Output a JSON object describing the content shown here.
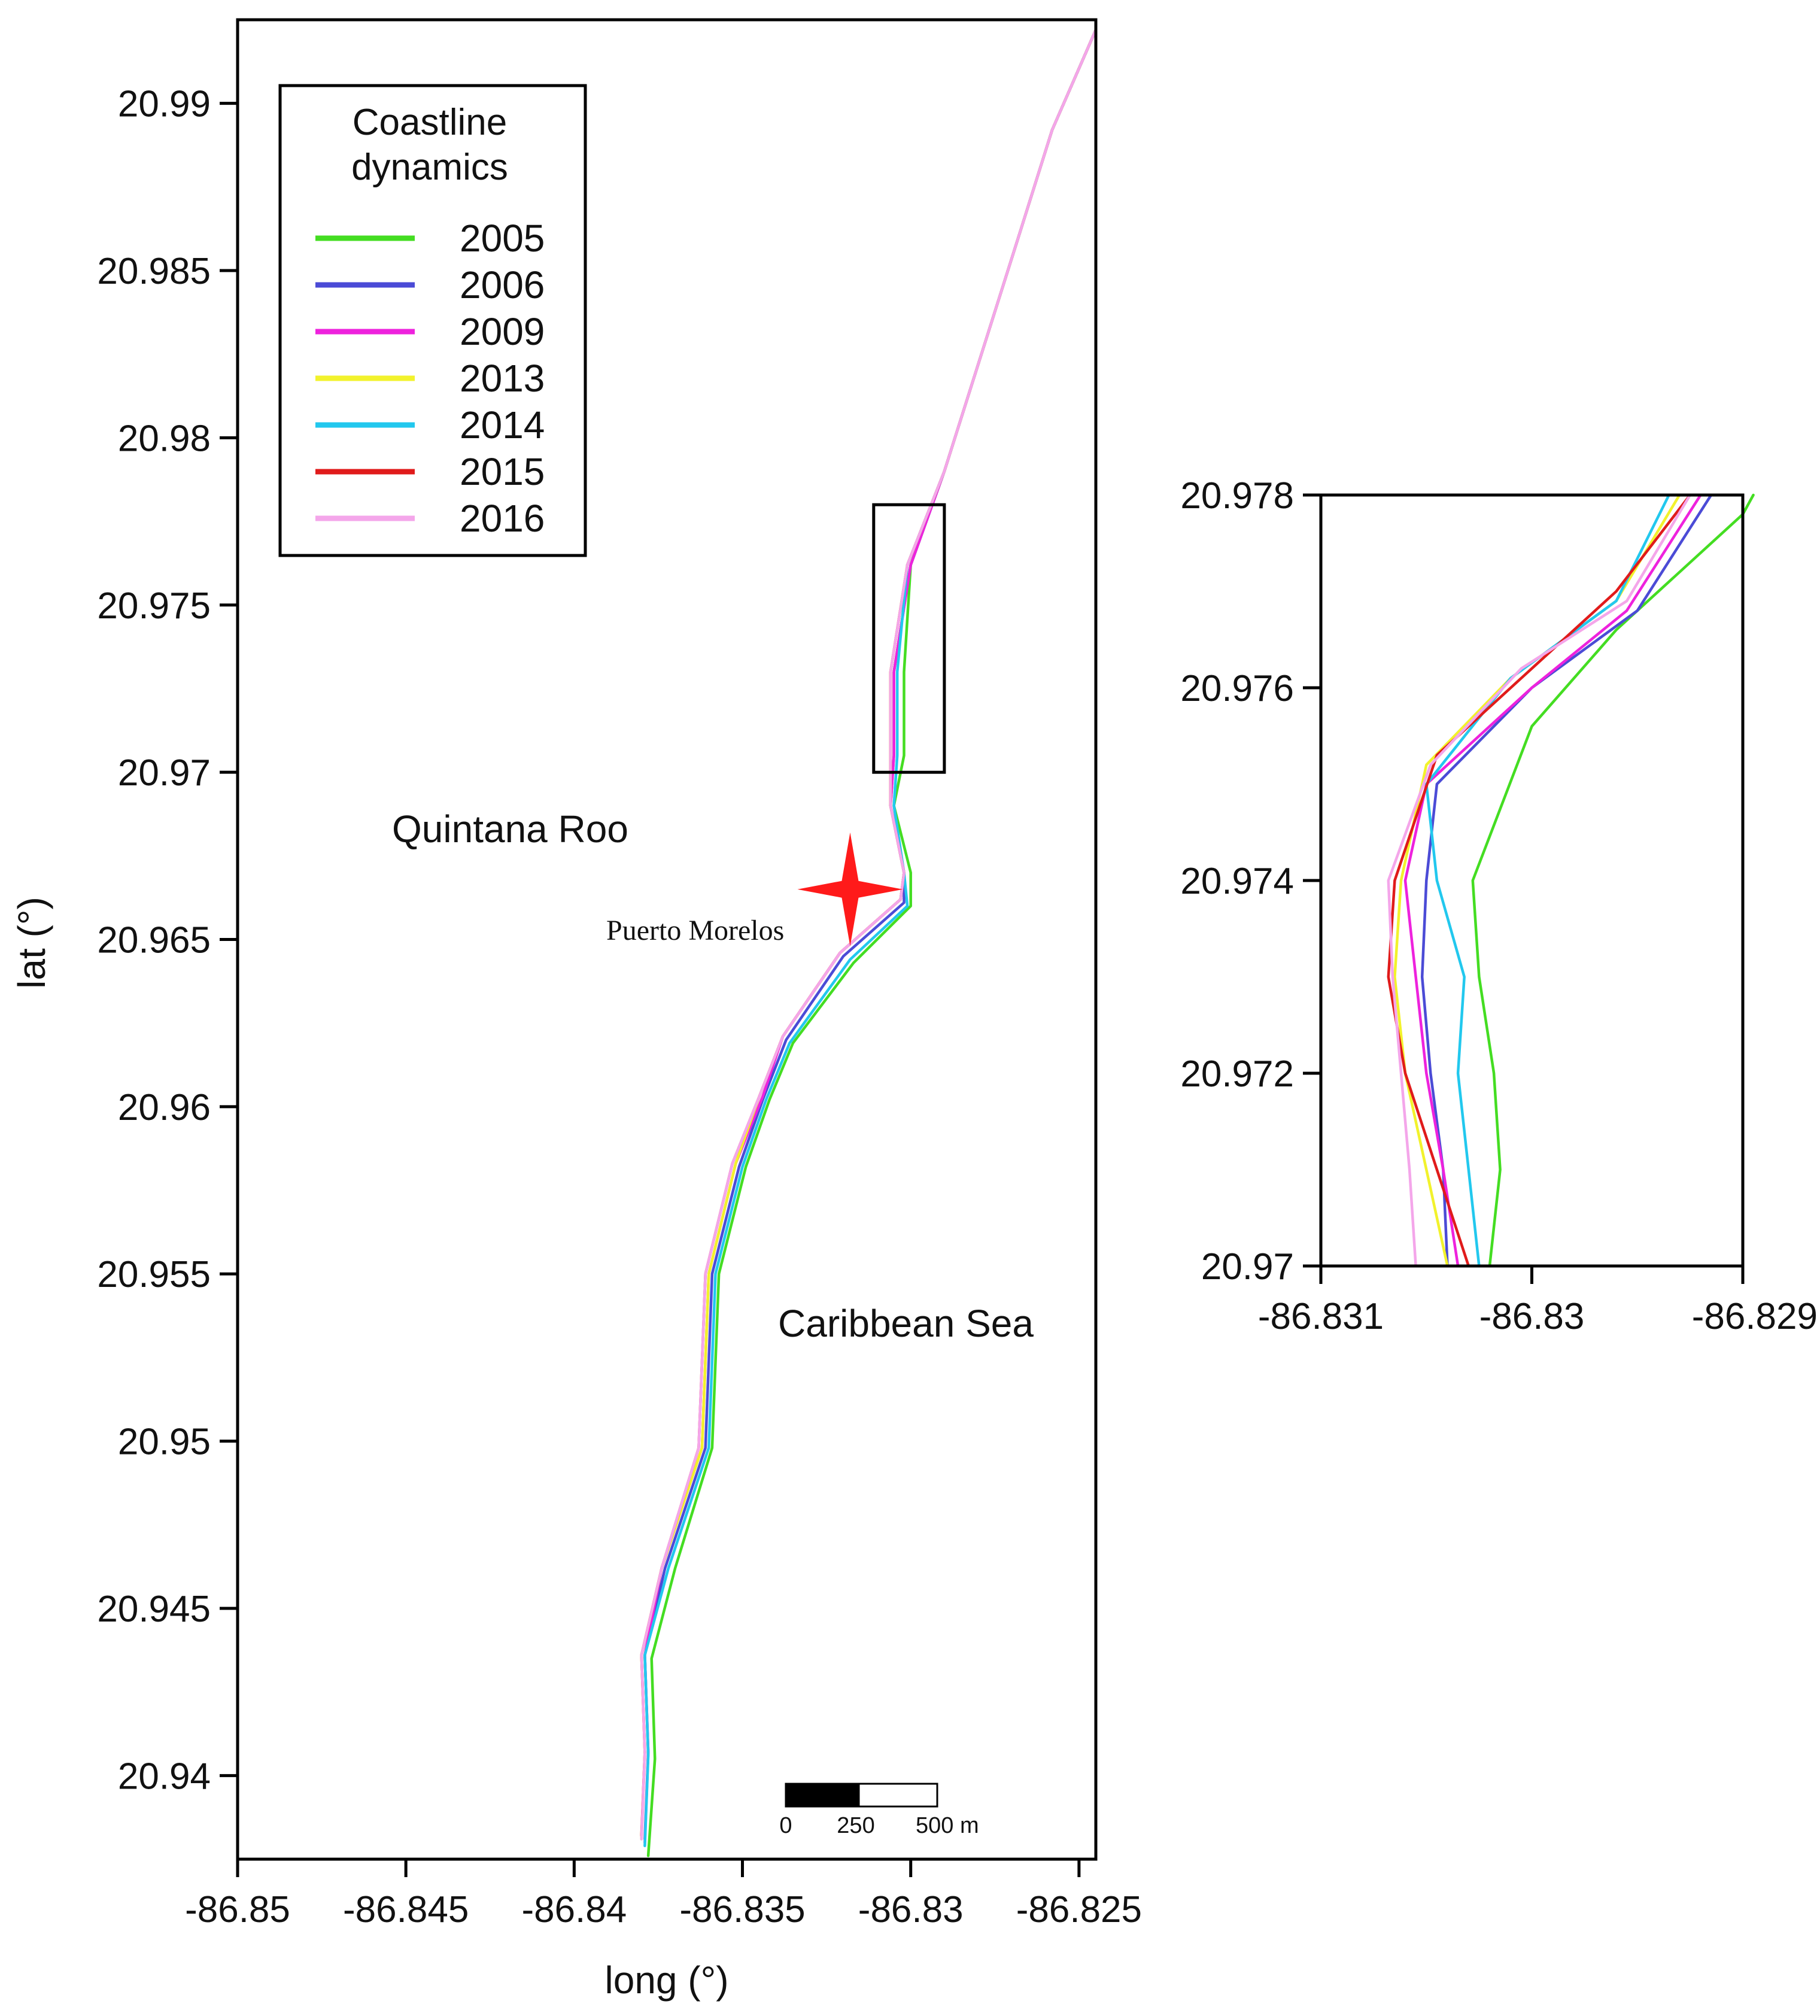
{
  "chart_data": [
    {
      "type": "line",
      "xlabel": "long (°)",
      "ylabel": "lat (°)",
      "xlim": [
        -86.85,
        -86.8245
      ],
      "ylim": [
        20.9375,
        20.9925
      ],
      "x_ticks": [
        -86.85,
        -86.845,
        -86.84,
        -86.835,
        -86.83,
        -86.825
      ],
      "y_ticks": [
        20.94,
        20.945,
        20.95,
        20.955,
        20.96,
        20.965,
        20.97,
        20.975,
        20.98,
        20.985,
        20.99
      ],
      "x_tick_labels": [
        "-86.85",
        "-86.845",
        "-86.84",
        "-86.835",
        "-86.83",
        "-86.825"
      ],
      "y_tick_labels": [
        "20.94",
        "20.945",
        "20.95",
        "20.955",
        "20.96",
        "20.965",
        "20.97",
        "20.975",
        "20.98",
        "20.985",
        "20.99"
      ],
      "legend": {
        "title_line1": "Coastline",
        "title_line2": "dynamics",
        "position": "top-left"
      },
      "annotations": {
        "land": "Quintana Roo",
        "sea": "Caribbean Sea",
        "town": "Puerto Morelos"
      },
      "town_marker": {
        "lon": -86.8318,
        "lat": 20.9665,
        "color": "#ff1a1a"
      },
      "inset_box": {
        "lon_range": [
          -86.8311,
          -86.829
        ],
        "lat_range": [
          20.97,
          20.978
        ]
      },
      "scale_bar": {
        "labels": [
          "0",
          "250",
          "500 m"
        ]
      },
      "series": [
        {
          "name": "2005",
          "color": "#44dd22",
          "points": [
            [
              -86.8378,
              20.9376
            ],
            [
              -86.8376,
              20.9405
            ],
            [
              -86.8377,
              20.9435
            ],
            [
              -86.837,
              20.9462
            ],
            [
              -86.8359,
              20.9498
            ],
            [
              -86.8357,
              20.955
            ],
            [
              -86.8349,
              20.9582
            ],
            [
              -86.8342,
              20.9602
            ],
            [
              -86.8335,
              20.9619
            ],
            [
              -86.8317,
              20.9643
            ],
            [
              -86.83,
              20.966
            ],
            [
              -86.83,
              20.967
            ],
            [
              -86.8305,
              20.969
            ],
            [
              -86.8302,
              20.9705
            ],
            [
              -86.8302,
              20.973
            ],
            [
              -86.83,
              20.9762
            ],
            [
              -86.829,
              20.979
            ],
            [
              -86.8268,
              20.986
            ],
            [
              -86.8258,
              20.9892
            ],
            [
              -86.8245,
              20.9922
            ]
          ]
        },
        {
          "name": "2006",
          "color": "#4b4bd6",
          "points": [
            [
              -86.8379,
              20.9381
            ],
            [
              -86.8378,
              20.9407
            ],
            [
              -86.8379,
              20.9436
            ],
            [
              -86.8373,
              20.9462
            ],
            [
              -86.8361,
              20.9498
            ],
            [
              -86.8359,
              20.955
            ],
            [
              -86.8351,
              20.9582
            ],
            [
              -86.8344,
              20.9602
            ],
            [
              -86.8337,
              20.962
            ],
            [
              -86.832,
              20.9645
            ],
            [
              -86.8302,
              20.9661
            ],
            [
              -86.8302,
              20.967
            ],
            [
              -86.8306,
              20.969
            ],
            [
              -86.8305,
              20.9705
            ],
            [
              -86.8305,
              20.973
            ],
            [
              -86.83,
              20.9762
            ],
            [
              -86.829,
              20.979
            ],
            [
              -86.8268,
              20.986
            ],
            [
              -86.8258,
              20.9892
            ],
            [
              -86.8245,
              20.9922
            ]
          ]
        },
        {
          "name": "2009",
          "color": "#ee22dd",
          "points": [
            [
              -86.8379,
              20.938
            ],
            [
              -86.8378,
              20.9407
            ],
            [
              -86.8379,
              20.9436
            ],
            [
              -86.8374,
              20.9462
            ],
            [
              -86.8362,
              20.9498
            ],
            [
              -86.836,
              20.955
            ],
            [
              -86.8352,
              20.9583
            ],
            [
              -86.8344,
              20.9603
            ],
            [
              -86.8338,
              20.9621
            ],
            [
              -86.8321,
              20.9646
            ],
            [
              -86.8303,
              20.9662
            ],
            [
              -86.8302,
              20.967
            ],
            [
              -86.8306,
              20.969
            ],
            [
              -86.8305,
              20.9705
            ],
            [
              -86.8305,
              20.973
            ],
            [
              -86.83,
              20.9762
            ],
            [
              -86.829,
              20.979
            ],
            [
              -86.8268,
              20.986
            ],
            [
              -86.8258,
              20.9892
            ],
            [
              -86.8245,
              20.9922
            ]
          ]
        },
        {
          "name": "2013",
          "color": "#f2f22c",
          "points": [
            [
              -86.838,
              20.9381
            ],
            [
              -86.8379,
              20.9407
            ],
            [
              -86.838,
              20.9436
            ],
            [
              -86.8374,
              20.9462
            ],
            [
              -86.8362,
              20.9498
            ],
            [
              -86.836,
              20.955
            ],
            [
              -86.8352,
              20.9583
            ],
            [
              -86.8345,
              20.9603
            ],
            [
              -86.8338,
              20.9621
            ],
            [
              -86.8321,
              20.9646
            ],
            [
              -86.8303,
              20.9662
            ],
            [
              -86.8302,
              20.967
            ],
            [
              -86.8306,
              20.969
            ],
            [
              -86.8306,
              20.9705
            ],
            [
              -86.8306,
              20.973
            ],
            [
              -86.8301,
              20.9762
            ],
            [
              -86.829,
              20.979
            ],
            [
              -86.8268,
              20.986
            ],
            [
              -86.8258,
              20.9892
            ],
            [
              -86.8245,
              20.9922
            ]
          ]
        },
        {
          "name": "2014",
          "color": "#22c8ee",
          "points": [
            [
              -86.8379,
              20.9379
            ],
            [
              -86.8378,
              20.9406
            ],
            [
              -86.8379,
              20.9436
            ],
            [
              -86.8372,
              20.9462
            ],
            [
              -86.836,
              20.9498
            ],
            [
              -86.8358,
              20.955
            ],
            [
              -86.835,
              20.9582
            ],
            [
              -86.8343,
              20.9602
            ],
            [
              -86.8336,
              20.9619
            ],
            [
              -86.8318,
              20.9644
            ],
            [
              -86.8301,
              20.966
            ],
            [
              -86.8302,
              20.967
            ],
            [
              -86.8305,
              20.969
            ],
            [
              -86.8304,
              20.9705
            ],
            [
              -86.8304,
              20.973
            ],
            [
              -86.8301,
              20.9762
            ],
            [
              -86.829,
              20.979
            ],
            [
              -86.8268,
              20.986
            ],
            [
              -86.8258,
              20.9892
            ],
            [
              -86.8245,
              20.9922
            ]
          ]
        },
        {
          "name": "2015",
          "color": "#e01b1b",
          "points": [
            [
              -86.838,
              20.9382
            ],
            [
              -86.8379,
              20.9407
            ],
            [
              -86.838,
              20.9436
            ],
            [
              -86.8374,
              20.9462
            ],
            [
              -86.8363,
              20.9498
            ],
            [
              -86.8361,
              20.955
            ],
            [
              -86.8353,
              20.9583
            ],
            [
              -86.8345,
              20.9603
            ],
            [
              -86.8338,
              20.9621
            ],
            [
              -86.8321,
              20.9646
            ],
            [
              -86.8303,
              20.9662
            ],
            [
              -86.8302,
              20.967
            ],
            [
              -86.8306,
              20.969
            ],
            [
              -86.8306,
              20.9705
            ],
            [
              -86.8306,
              20.973
            ],
            [
              -86.8301,
              20.9762
            ],
            [
              -86.829,
              20.979
            ],
            [
              -86.8268,
              20.986
            ],
            [
              -86.8258,
              20.9892
            ],
            [
              -86.8245,
              20.9922
            ]
          ]
        },
        {
          "name": "2016",
          "color": "#f4a6ea",
          "points": [
            [
              -86.838,
              20.9381
            ],
            [
              -86.8379,
              20.9407
            ],
            [
              -86.838,
              20.9436
            ],
            [
              -86.8374,
              20.9462
            ],
            [
              -86.8363,
              20.9498
            ],
            [
              -86.8361,
              20.955
            ],
            [
              -86.8353,
              20.9583
            ],
            [
              -86.8345,
              20.9603
            ],
            [
              -86.8338,
              20.9621
            ],
            [
              -86.8321,
              20.9646
            ],
            [
              -86.8303,
              20.9662
            ],
            [
              -86.8302,
              20.967
            ],
            [
              -86.8306,
              20.969
            ],
            [
              -86.8306,
              20.9705
            ],
            [
              -86.8306,
              20.973
            ],
            [
              -86.8301,
              20.9762
            ],
            [
              -86.829,
              20.979
            ],
            [
              -86.8268,
              20.986
            ],
            [
              -86.8258,
              20.9892
            ],
            [
              -86.8245,
              20.9922
            ]
          ]
        }
      ]
    },
    {
      "type": "line",
      "xlim": [
        -86.831,
        -86.829
      ],
      "ylim": [
        20.97,
        20.978
      ],
      "x_ticks": [
        -86.831,
        -86.83,
        -86.829
      ],
      "y_ticks": [
        20.97,
        20.972,
        20.974,
        20.976,
        20.978
      ],
      "x_tick_labels": [
        "-86.831",
        "-86.83",
        "-86.829"
      ],
      "y_tick_labels": [
        "20.97",
        "20.972",
        "20.974",
        "20.976",
        "20.978"
      ],
      "series": [
        {
          "name": "2005",
          "color": "#44dd22",
          "points": [
            [
              -86.8302,
              20.97
            ],
            [
              -86.83015,
              20.971
            ],
            [
              -86.83018,
              20.972
            ],
            [
              -86.83025,
              20.973
            ],
            [
              -86.83028,
              20.974
            ],
            [
              -86.83,
              20.9756
            ],
            [
              -86.8296,
              20.9766
            ],
            [
              -86.829,
              20.9778
            ],
            [
              -86.82895,
              20.978
            ]
          ]
        },
        {
          "name": "2006",
          "color": "#4b4bd6",
          "points": [
            [
              -86.8304,
              20.97
            ],
            [
              -86.83042,
              20.971
            ],
            [
              -86.83048,
              20.972
            ],
            [
              -86.83052,
              20.973
            ],
            [
              -86.8305,
              20.974
            ],
            [
              -86.83045,
              20.975
            ],
            [
              -86.83,
              20.976
            ],
            [
              -86.8295,
              20.9768
            ],
            [
              -86.82915,
              20.978
            ]
          ]
        },
        {
          "name": "2009",
          "color": "#ee22dd",
          "points": [
            [
              -86.83035,
              20.97
            ],
            [
              -86.83042,
              20.971
            ],
            [
              -86.8305,
              20.972
            ],
            [
              -86.83055,
              20.973
            ],
            [
              -86.8306,
              20.974
            ],
            [
              -86.8305,
              20.975
            ],
            [
              -86.83,
              20.976
            ],
            [
              -86.82955,
              20.9768
            ],
            [
              -86.8292,
              20.978
            ]
          ]
        },
        {
          "name": "2013",
          "color": "#f2f22c",
          "points": [
            [
              -86.8304,
              20.97
            ],
            [
              -86.8305,
              20.971
            ],
            [
              -86.8306,
              20.972
            ],
            [
              -86.83065,
              20.973
            ],
            [
              -86.83062,
              20.974
            ],
            [
              -86.8305,
              20.9752
            ],
            [
              -86.8301,
              20.9761
            ],
            [
              -86.8296,
              20.9769
            ],
            [
              -86.8293,
              20.978
            ]
          ]
        },
        {
          "name": "2014",
          "color": "#22c8ee",
          "points": [
            [
              -86.83025,
              20.97
            ],
            [
              -86.8303,
              20.971
            ],
            [
              -86.83035,
              20.972
            ],
            [
              -86.83032,
              20.973
            ],
            [
              -86.83045,
              20.974
            ],
            [
              -86.8305,
              20.975
            ],
            [
              -86.8301,
              20.9761
            ],
            [
              -86.8296,
              20.9769
            ],
            [
              -86.82935,
              20.978
            ]
          ]
        },
        {
          "name": "2015",
          "color": "#e01b1b",
          "points": [
            [
              -86.8303,
              20.97
            ],
            [
              -86.83045,
              20.971
            ],
            [
              -86.8306,
              20.972
            ],
            [
              -86.83068,
              20.973
            ],
            [
              -86.83065,
              20.974
            ],
            [
              -86.83045,
              20.9753
            ],
            [
              -86.83,
              20.9762
            ],
            [
              -86.8296,
              20.977
            ],
            [
              -86.82925,
              20.978
            ]
          ]
        },
        {
          "name": "2016",
          "color": "#f4a6ea",
          "points": [
            [
              -86.83055,
              20.97
            ],
            [
              -86.83058,
              20.971
            ],
            [
              -86.83062,
              20.972
            ],
            [
              -86.83066,
              20.973
            ],
            [
              -86.83068,
              20.974
            ],
            [
              -86.83048,
              20.9752
            ],
            [
              -86.83005,
              20.9762
            ],
            [
              -86.82955,
              20.9769
            ],
            [
              -86.82925,
              20.978
            ]
          ]
        }
      ]
    }
  ]
}
